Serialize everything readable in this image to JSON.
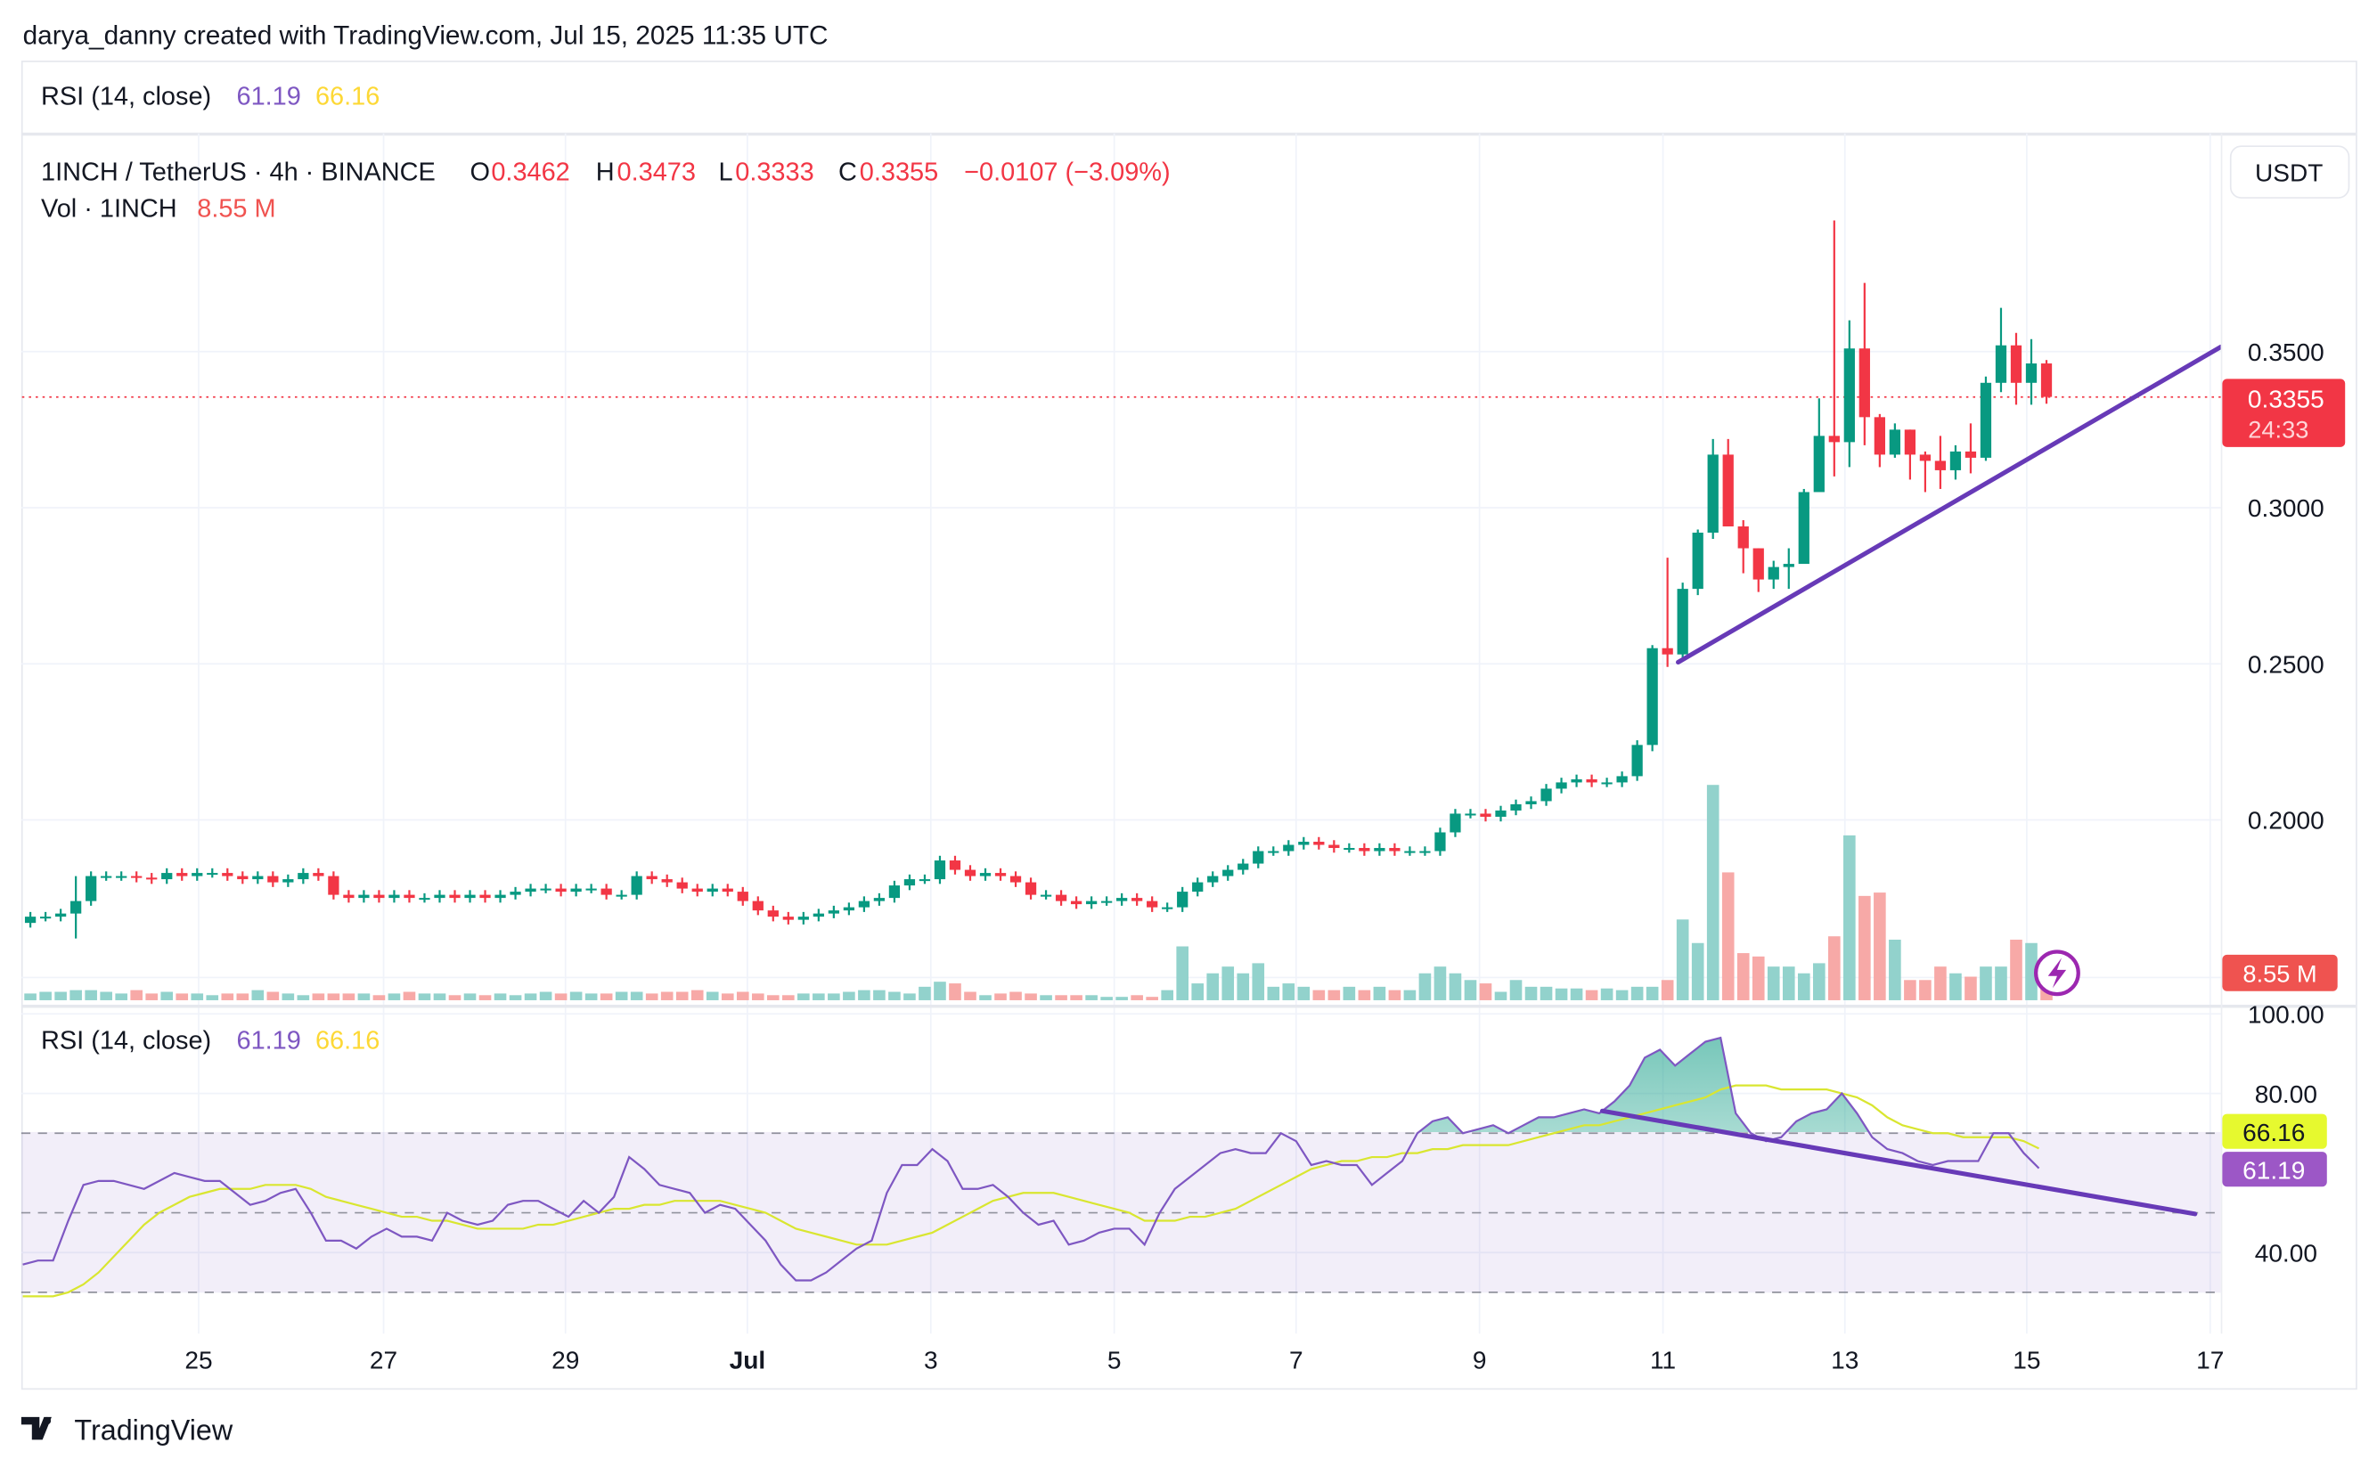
{
  "header": {
    "attribution": "darya_danny created with TradingView.com, Jul 15, 2025 11:35 UTC"
  },
  "rsi_legend_top": {
    "label": "RSI (14, close)",
    "rsi_value": "61.19",
    "ma_value": "66.16"
  },
  "legend": {
    "symbol": "1INCH / TetherUS · 4h · BINANCE",
    "o_label": "O",
    "o_value": "0.3462",
    "h_label": "H",
    "h_value": "0.3473",
    "l_label": "L",
    "l_value": "0.3333",
    "c_label": "C",
    "c_value": "0.3355",
    "change": "−0.0107 (−3.09%)",
    "vol_label": "Vol · 1INCH",
    "vol_value": "8.55 M"
  },
  "currency_button": "USDT",
  "price_axis": {
    "ticks": [
      "0.3500",
      "0.3000",
      "0.2500",
      "0.2000"
    ],
    "current_price": "0.3355",
    "countdown": "24:33",
    "volume_label": "8.55 M"
  },
  "rsi_pane": {
    "label": "RSI (14, close)",
    "rsi_value": "61.19",
    "ma_value": "66.16",
    "ticks": [
      "100.00",
      "80.00",
      "40.00"
    ],
    "rsi_badge": "61.19",
    "ma_badge": "66.16"
  },
  "time_axis": {
    "ticks": [
      "25",
      "27",
      "29",
      "Jul",
      "3",
      "5",
      "7",
      "9",
      "11",
      "13",
      "15",
      "17"
    ]
  },
  "footer": {
    "logo_text": "TradingView"
  },
  "colors": {
    "up": "#089981",
    "down": "#f23645",
    "vol_up": "#92d2cc",
    "vol_down": "#f7a9a7",
    "rsi": "#7e57c2",
    "rsi_ma": "#d9e630",
    "trendline": "#673ab7",
    "band": "#7e57c2"
  },
  "chart_data": {
    "type": "candlestick",
    "interval": "4h",
    "price_range": [
      0.155,
      0.395
    ],
    "first_open": 0.167,
    "closes": [
      0.169,
      0.169,
      0.17,
      0.174,
      0.182,
      0.182,
      0.182,
      0.1815,
      0.181,
      0.183,
      0.182,
      0.183,
      0.183,
      0.182,
      0.181,
      0.182,
      0.18,
      0.181,
      0.183,
      0.182,
      0.176,
      0.175,
      0.176,
      0.175,
      0.176,
      0.175,
      0.175,
      0.176,
      0.175,
      0.176,
      0.175,
      0.176,
      0.177,
      0.178,
      0.178,
      0.177,
      0.178,
      0.178,
      0.176,
      0.176,
      0.182,
      0.181,
      0.18,
      0.178,
      0.177,
      0.178,
      0.177,
      0.174,
      0.171,
      0.169,
      0.168,
      0.169,
      0.17,
      0.171,
      0.172,
      0.174,
      0.175,
      0.179,
      0.181,
      0.181,
      0.187,
      0.184,
      0.182,
      0.183,
      0.182,
      0.18,
      0.176,
      0.176,
      0.174,
      0.173,
      0.174,
      0.174,
      0.175,
      0.174,
      0.172,
      0.172,
      0.177,
      0.18,
      0.182,
      0.184,
      0.186,
      0.19,
      0.19,
      0.192,
      0.193,
      0.192,
      0.191,
      0.191,
      0.19,
      0.191,
      0.19,
      0.19,
      0.19,
      0.196,
      0.202,
      0.202,
      0.201,
      0.203,
      0.205,
      0.206,
      0.21,
      0.212,
      0.213,
      0.212,
      0.212,
      0.214,
      0.224,
      0.255,
      0.253,
      0.274,
      0.292,
      0.317,
      0.294,
      0.287,
      0.277,
      0.281,
      0.282,
      0.305,
      0.323,
      0.321,
      0.351,
      0.329,
      0.317,
      0.325,
      0.317,
      0.315,
      0.312,
      0.318,
      0.316,
      0.34,
      0.352,
      0.34,
      0.3462,
      0.3355
    ],
    "wicks": [
      {
        "bar": 3,
        "high": 0.182,
        "low": 0.162
      },
      {
        "bar": 107,
        "high": 0.256,
        "low": 0.222
      },
      {
        "bar": 108,
        "high": 0.284,
        "low": 0.249
      },
      {
        "bar": 109,
        "high": 0.276,
        "low": 0.252
      },
      {
        "bar": 110,
        "high": 0.293,
        "low": 0.272
      },
      {
        "bar": 111,
        "high": 0.322,
        "low": 0.29
      },
      {
        "bar": 112,
        "high": 0.322,
        "low": 0.295
      },
      {
        "bar": 113,
        "high": 0.296,
        "low": 0.279
      },
      {
        "bar": 114,
        "high": 0.287,
        "low": 0.273
      },
      {
        "bar": 115,
        "high": 0.283,
        "low": 0.274
      },
      {
        "bar": 116,
        "high": 0.287,
        "low": 0.274
      },
      {
        "bar": 117,
        "high": 0.306,
        "low": 0.297
      },
      {
        "bar": 118,
        "high": 0.335,
        "low": 0.308
      },
      {
        "bar": 119,
        "high": 0.392,
        "low": 0.31
      },
      {
        "bar": 120,
        "high": 0.36,
        "low": 0.313
      },
      {
        "bar": 121,
        "high": 0.372,
        "low": 0.32
      },
      {
        "bar": 122,
        "high": 0.33,
        "low": 0.313
      },
      {
        "bar": 123,
        "high": 0.327,
        "low": 0.316
      },
      {
        "bar": 124,
        "high": 0.325,
        "low": 0.309
      },
      {
        "bar": 125,
        "high": 0.318,
        "low": 0.305
      },
      {
        "bar": 126,
        "high": 0.323,
        "low": 0.306
      },
      {
        "bar": 127,
        "high": 0.32,
        "low": 0.309
      },
      {
        "bar": 128,
        "high": 0.327,
        "low": 0.311
      },
      {
        "bar": 129,
        "high": 0.342,
        "low": 0.315
      },
      {
        "bar": 130,
        "high": 0.364,
        "low": 0.337
      },
      {
        "bar": 131,
        "high": 0.356,
        "low": 0.333
      },
      {
        "bar": 132,
        "high": 0.354,
        "low": 0.333
      },
      {
        "bar": 133,
        "high": 0.3473,
        "low": 0.3333
      }
    ],
    "volume_millions": [
      2,
      2.5,
      2.5,
      3,
      3,
      2.5,
      2,
      3,
      2,
      2.5,
      2,
      2,
      1.5,
      2,
      2,
      3,
      2.5,
      2,
      1.5,
      2,
      2,
      2,
      2,
      1.5,
      2,
      2.5,
      2,
      2,
      1.5,
      2,
      1.5,
      2,
      1.5,
      2,
      2.5,
      2,
      2.5,
      2,
      2,
      2.5,
      2.5,
      2,
      2.5,
      2.5,
      3,
      2.5,
      2,
      2.5,
      2,
      1.5,
      1.5,
      2,
      2,
      2,
      2.5,
      3,
      3,
      2.5,
      2,
      4,
      5.5,
      5,
      2.5,
      1.5,
      2,
      2.5,
      2,
      1.5,
      1.5,
      1.5,
      1.5,
      1,
      1,
      1.5,
      1,
      3,
      16,
      5,
      8,
      10,
      8,
      11,
      4,
      5,
      4,
      3,
      3,
      4,
      3,
      4,
      3,
      3,
      8,
      10,
      8,
      6,
      5,
      2.5,
      6,
      4,
      4,
      3.5,
      3.5,
      3,
      3.5,
      3,
      4,
      4,
      6,
      24,
      17,
      64,
      38,
      14,
      13,
      10,
      10,
      8,
      11,
      19,
      49,
      31,
      32,
      18,
      6,
      6,
      10,
      8,
      7,
      10,
      10,
      18,
      17,
      8.55
    ],
    "rsi": [
      37,
      38,
      38,
      48,
      57,
      58,
      58,
      57,
      56,
      58,
      60,
      59,
      58,
      58,
      55,
      52,
      53,
      55,
      56,
      50,
      43,
      43,
      41,
      44,
      46,
      44,
      44,
      43,
      50,
      48,
      47,
      48,
      52,
      53,
      53,
      51,
      49,
      53,
      50,
      54,
      64,
      61,
      57,
      56,
      55,
      50,
      52,
      51,
      47,
      43,
      37,
      33,
      33,
      35,
      38,
      41,
      43,
      55,
      62,
      62,
      66,
      63,
      56,
      56,
      57,
      54,
      50,
      47,
      48,
      42,
      43,
      45,
      46,
      46,
      42,
      50,
      56,
      59,
      62,
      65,
      66,
      65,
      65,
      70,
      68,
      62,
      63,
      62,
      62,
      57,
      60,
      63,
      70,
      73,
      74,
      70,
      71,
      72,
      70,
      72,
      74,
      74,
      75,
      76,
      75,
      78,
      82,
      89,
      91,
      87,
      90,
      93,
      94,
      75,
      70,
      68,
      69,
      73,
      75,
      76,
      80,
      75,
      69,
      66,
      65,
      63,
      62,
      63,
      63,
      63,
      70,
      70,
      65,
      61.19
    ],
    "rsi_ma": [
      29,
      29,
      29,
      30,
      32,
      35,
      39,
      43,
      47,
      50,
      52,
      54,
      55,
      56,
      56,
      56,
      57,
      57,
      57,
      56,
      54,
      53,
      52,
      51,
      50,
      49,
      49,
      48,
      48,
      47,
      46,
      46,
      46,
      46,
      47,
      47,
      48,
      49,
      50,
      51,
      51,
      52,
      52,
      53,
      53,
      53,
      53,
      52,
      51,
      50,
      48,
      46,
      45,
      44,
      43,
      42,
      42,
      42,
      43,
      44,
      45,
      47,
      49,
      51,
      53,
      54,
      55,
      55,
      55,
      54,
      53,
      52,
      51,
      50,
      48,
      48,
      48,
      49,
      49,
      50,
      51,
      53,
      55,
      57,
      59,
      61,
      62,
      63,
      63,
      64,
      64,
      65,
      65,
      66,
      66,
      67,
      67,
      67,
      67,
      68,
      69,
      70,
      71,
      72,
      72,
      73,
      74,
      75,
      76,
      77,
      78,
      79,
      81,
      82,
      82,
      82,
      81,
      81,
      81,
      81,
      80,
      79,
      77,
      74,
      72,
      71,
      70,
      70,
      69,
      69,
      69,
      69,
      68,
      66.16
    ],
    "rsi_range": [
      25,
      100
    ],
    "rsi_bands": [
      70,
      50,
      30
    ],
    "drawings": [
      {
        "pane": "price",
        "from": {
          "bar": 108.7,
          "value": 0.2505
        },
        "to": {
          "bar": 144.5,
          "value": 0.3515
        }
      },
      {
        "pane": "rsi",
        "from": {
          "bar": 103.7,
          "value": 75.6
        },
        "to": {
          "bar": 142.8,
          "value": 49.7
        }
      }
    ]
  }
}
